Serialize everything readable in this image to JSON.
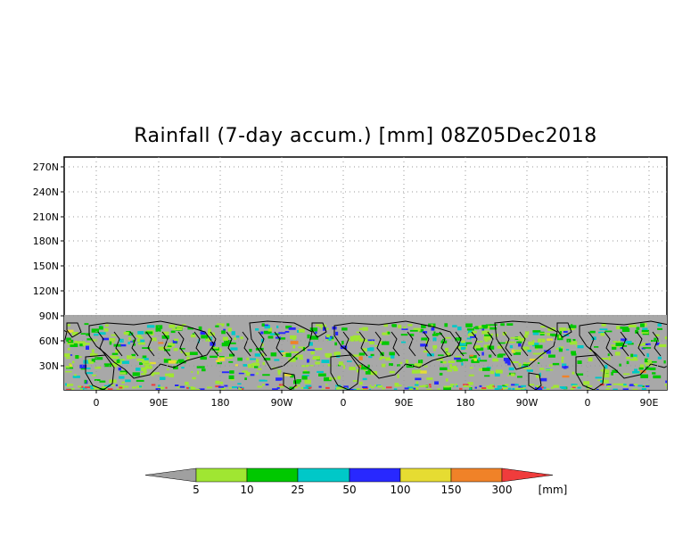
{
  "title": "Rainfall (7-day accum.) [mm] 08Z05Dec2018",
  "y_axis_labels": [
    "270N",
    "240N",
    "210N",
    "180N",
    "150N",
    "120N",
    "90N",
    "60N",
    "30N"
  ],
  "x_axis_labels": [
    "0",
    "90E",
    "180",
    "90W",
    "0",
    "90E",
    "180",
    "90W",
    "0",
    "90E"
  ],
  "colorbar": {
    "unit": "[mm]",
    "ticks": [
      "5",
      "10",
      "25",
      "50",
      "100",
      "150",
      "300"
    ],
    "colors": [
      "#a0a0a0",
      "#a0e632",
      "#00c800",
      "#00c8c8",
      "#2828ff",
      "#e6dc32",
      "#f08228",
      "#f03c3c"
    ]
  },
  "map": {
    "ocean_color": "#a0a0a0",
    "coastline_color": "#000000",
    "grid": "dotted",
    "data_coverage": "latitude band up to 90N, longitude repeated 3 times"
  }
}
